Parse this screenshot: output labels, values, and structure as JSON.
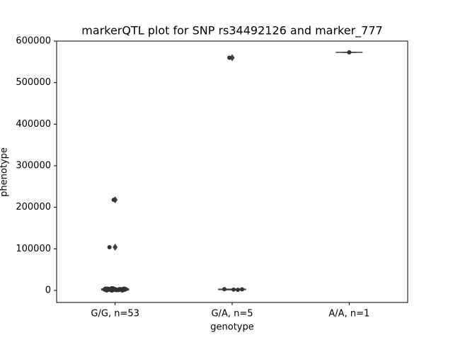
{
  "chart_data": {
    "type": "box",
    "title": "markerQTL plot for SNP rs34492126 and marker_777",
    "x_label": "genotype",
    "y_label": "phenotype",
    "categories": [
      "G/G, n=53",
      "G/A, n=5",
      "A/A, n=1"
    ],
    "ylim": [
      -29000,
      600000
    ],
    "yticks": [
      0,
      100000,
      200000,
      300000,
      400000,
      500000,
      600000
    ],
    "color": "#3f3f3f",
    "point_color": "#333333",
    "boxes": [
      {
        "whislo": 0,
        "q1": 1000,
        "median": 2000,
        "q3": 3500,
        "whishi": 5000,
        "fliers": [
          104000,
          218000
        ]
      },
      {
        "whislo": 1500,
        "q1": 2000,
        "median": 2500,
        "q3": 3000,
        "whishi": 3000,
        "fliers": [
          560000
        ]
      },
      {
        "whislo": 573000,
        "q1": 573000,
        "median": 573000,
        "q3": 573000,
        "whishi": 573000,
        "fliers": []
      }
    ],
    "points": [
      [
        0,
        1000,
        2000,
        3000,
        4000,
        5000,
        1000,
        2000,
        3000,
        0,
        1000,
        2000,
        3000,
        4000,
        2000,
        1000,
        3000,
        2000,
        1000,
        4000,
        3000,
        2000,
        1000,
        0,
        2000,
        3000,
        5000,
        1000,
        2000,
        3000,
        4000,
        2000,
        1000,
        3000,
        2000,
        1000,
        0,
        2000,
        3000,
        4000,
        1000,
        2000,
        3000,
        2000,
        1000,
        4000,
        3000,
        2000,
        1000,
        2000,
        3000,
        104000,
        218000
      ],
      [
        560000,
        2000,
        1500,
        2500,
        3000
      ],
      [
        573000
      ]
    ]
  }
}
